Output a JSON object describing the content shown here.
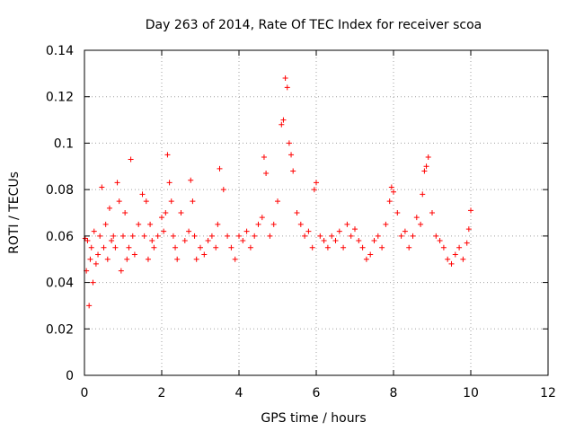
{
  "chart_data": {
    "type": "scatter",
    "title": "Day 263 of 2014, Rate Of TEC Index for receiver scoa",
    "xlabel": "GPS time / hours",
    "ylabel": "ROTI / TECUs",
    "xlim": [
      0,
      12
    ],
    "ylim": [
      0,
      0.14
    ],
    "x_ticks": [
      "0",
      "2",
      "4",
      "6",
      "8",
      "10",
      "12"
    ],
    "y_ticks": [
      "0",
      "0.02",
      "0.04",
      "0.06",
      "0.08",
      "0.1",
      "0.12",
      "0.14"
    ],
    "grid": true,
    "legend": "none",
    "marker": "+",
    "color": "#ff0000",
    "series": [
      {
        "x": [
          0.02,
          0.05,
          0.08,
          0.12,
          0.15,
          0.18,
          0.22,
          0.25,
          0.3,
          0.35,
          0.4,
          0.45,
          0.5,
          0.55,
          0.6,
          0.65,
          0.7,
          0.75,
          0.8,
          0.85,
          0.9,
          0.95,
          1.0,
          1.05,
          1.1,
          1.15,
          1.2,
          1.25,
          1.3,
          1.4,
          1.5,
          1.55,
          1.6,
          1.65,
          1.7,
          1.75,
          1.8,
          1.9,
          2.0,
          2.05,
          2.1,
          2.15,
          2.2,
          2.25,
          2.3,
          2.35,
          2.4,
          2.5,
          2.6,
          2.7,
          2.75,
          2.8,
          2.85,
          2.9,
          3.0,
          3.1,
          3.2,
          3.3,
          3.4,
          3.45,
          3.5,
          3.6,
          3.7,
          3.8,
          3.9,
          4.0,
          4.1,
          4.2,
          4.3,
          4.4,
          4.5,
          4.6,
          4.65,
          4.7,
          4.8,
          4.9,
          5.0,
          5.1,
          5.15,
          5.2,
          5.25,
          5.3,
          5.35,
          5.4,
          5.5,
          5.6,
          5.7,
          5.8,
          5.9,
          5.95,
          6.0,
          6.1,
          6.2,
          6.3,
          6.4,
          6.5,
          6.6,
          6.7,
          6.8,
          6.9,
          7.0,
          7.1,
          7.2,
          7.3,
          7.4,
          7.5,
          7.6,
          7.7,
          7.8,
          7.9,
          7.95,
          8.0,
          8.1,
          8.2,
          8.3,
          8.4,
          8.5,
          8.6,
          8.7,
          8.75,
          8.8,
          8.85,
          8.9,
          9.0,
          9.1,
          9.2,
          9.3,
          9.4,
          9.5,
          9.6,
          9.7,
          9.8,
          9.9,
          9.95,
          10.0
        ],
        "y": [
          0.059,
          0.045,
          0.058,
          0.03,
          0.05,
          0.055,
          0.04,
          0.062,
          0.048,
          0.052,
          0.06,
          0.081,
          0.055,
          0.065,
          0.05,
          0.072,
          0.058,
          0.06,
          0.055,
          0.083,
          0.075,
          0.045,
          0.06,
          0.07,
          0.05,
          0.055,
          0.093,
          0.06,
          0.052,
          0.065,
          0.078,
          0.06,
          0.075,
          0.05,
          0.065,
          0.058,
          0.055,
          0.06,
          0.068,
          0.062,
          0.07,
          0.095,
          0.083,
          0.075,
          0.06,
          0.055,
          0.05,
          0.07,
          0.058,
          0.062,
          0.084,
          0.075,
          0.06,
          0.05,
          0.055,
          0.052,
          0.058,
          0.06,
          0.055,
          0.065,
          0.089,
          0.08,
          0.06,
          0.055,
          0.05,
          0.06,
          0.058,
          0.062,
          0.055,
          0.06,
          0.065,
          0.068,
          0.094,
          0.087,
          0.06,
          0.065,
          0.075,
          0.108,
          0.11,
          0.128,
          0.124,
          0.1,
          0.095,
          0.088,
          0.07,
          0.065,
          0.06,
          0.062,
          0.055,
          0.08,
          0.083,
          0.06,
          0.058,
          0.055,
          0.06,
          0.058,
          0.062,
          0.055,
          0.065,
          0.06,
          0.063,
          0.058,
          0.055,
          0.05,
          0.052,
          0.058,
          0.06,
          0.055,
          0.065,
          0.075,
          0.081,
          0.079,
          0.07,
          0.06,
          0.062,
          0.055,
          0.06,
          0.068,
          0.065,
          0.078,
          0.088,
          0.09,
          0.094,
          0.07,
          0.06,
          0.058,
          0.055,
          0.05,
          0.048,
          0.052,
          0.055,
          0.05,
          0.057,
          0.063,
          0.071
        ]
      }
    ]
  }
}
